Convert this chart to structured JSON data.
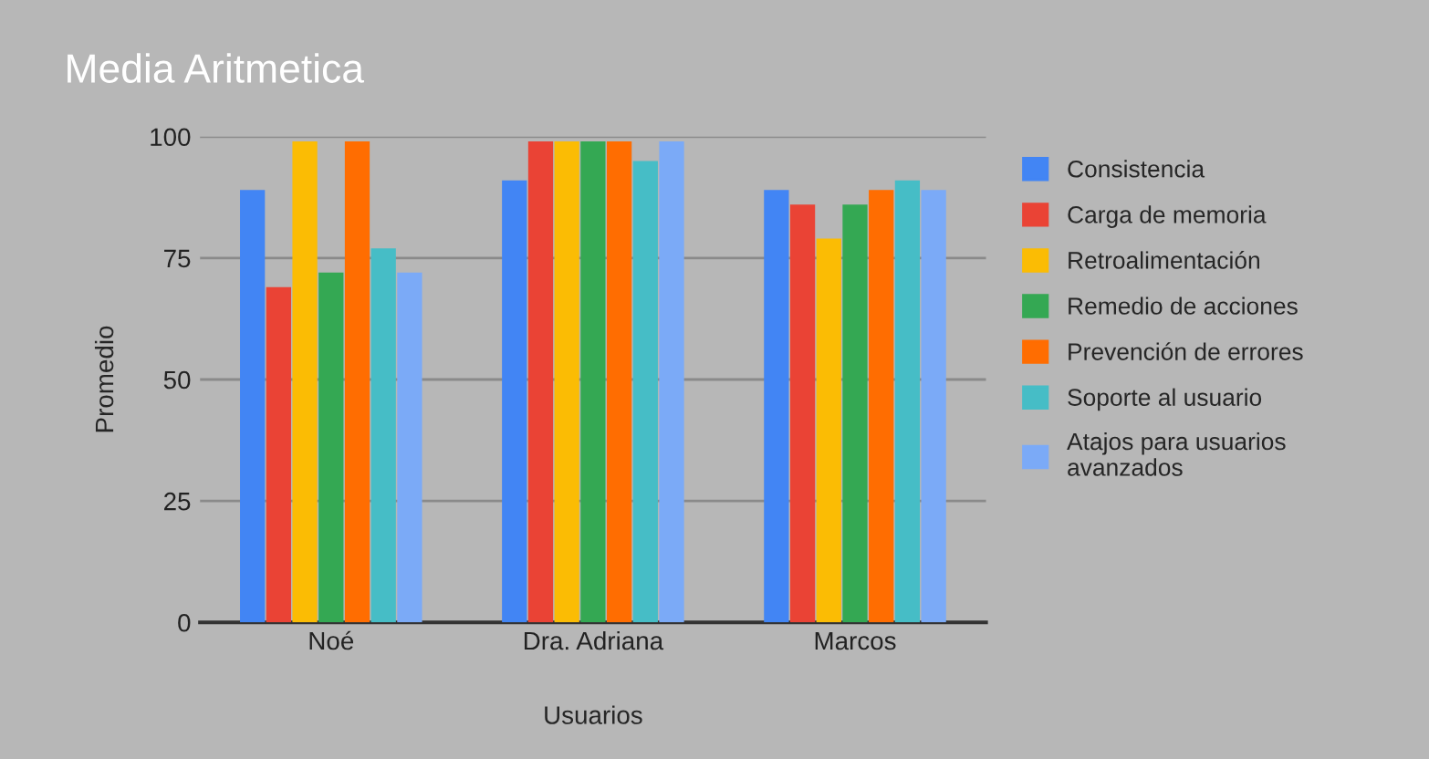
{
  "chart_data": {
    "type": "bar",
    "title": "Media Aritmetica",
    "xlabel": "Usuarios",
    "ylabel": "Promedio",
    "categories": [
      "Noé",
      "Dra. Adriana",
      "Marcos"
    ],
    "series": [
      {
        "name": "Consistencia",
        "color": "#4285f4",
        "values": [
          89,
          91,
          89
        ]
      },
      {
        "name": "Carga de memoria",
        "color": "#ea4335",
        "values": [
          69,
          99,
          86
        ]
      },
      {
        "name": "Retroalimentación",
        "color": "#fbbc04",
        "values": [
          99,
          99,
          79
        ]
      },
      {
        "name": "Remedio de acciones",
        "color": "#34a853",
        "values": [
          72,
          99,
          86
        ]
      },
      {
        "name": "Prevención de errores",
        "color": "#ff6d01",
        "values": [
          99,
          99,
          89
        ]
      },
      {
        "name": "Soporte al usuario",
        "color": "#46bdc6",
        "values": [
          77,
          95,
          91
        ]
      },
      {
        "name": "Atajos para usuarios\navanzados",
        "color": "#7baaf7",
        "values": [
          72,
          99,
          89
        ]
      }
    ],
    "ylim": [
      0,
      100
    ],
    "yticks": [
      0,
      25,
      50,
      75,
      100
    ],
    "grid": "y",
    "legend": "right"
  }
}
